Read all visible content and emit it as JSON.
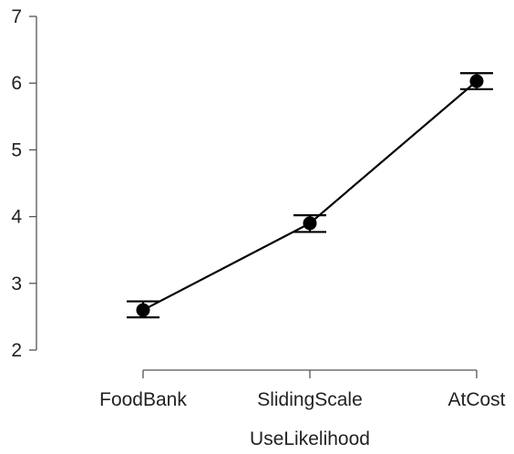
{
  "chart_data": {
    "type": "line",
    "title": "",
    "xlabel": "UseLikelihood",
    "ylabel": "",
    "categories": [
      "FoodBank",
      "SlidingScale",
      "AtCost"
    ],
    "series": [
      {
        "values": [
          2.6,
          3.9,
          6.03
        ],
        "error_low": [
          2.49,
          3.77,
          5.91
        ],
        "error_high": [
          2.73,
          4.02,
          6.15
        ]
      }
    ],
    "ylim": [
      2,
      7
    ],
    "yticks": [
      2,
      3,
      4,
      5,
      6,
      7
    ],
    "ytick_labels": [
      "2",
      "3",
      "4",
      "5",
      "6",
      "7"
    ],
    "grid": false,
    "legend": "none"
  }
}
